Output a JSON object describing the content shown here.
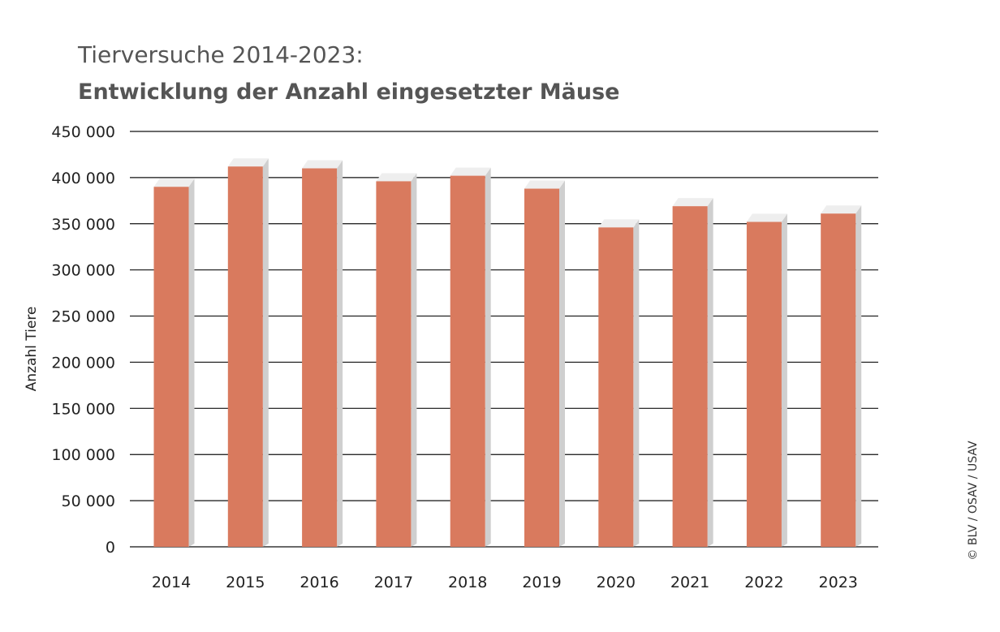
{
  "chart_data": {
    "type": "bar",
    "title": "Tierversuche 2014-2023:",
    "subtitle": "Entwicklung der Anzahl eingesetzter Mäuse",
    "ylabel": "Anzahl Tiere",
    "xlabel": "",
    "ylim": [
      0,
      450000
    ],
    "yticks": [
      0,
      50000,
      100000,
      150000,
      200000,
      250000,
      300000,
      350000,
      400000,
      450000
    ],
    "ytick_labels": [
      "0",
      "50 000",
      "100 000",
      "150 000",
      "200 000",
      "250 000",
      "300 000",
      "350 000",
      "400 000",
      "450 000"
    ],
    "categories": [
      "2014",
      "2015",
      "2016",
      "2017",
      "2018",
      "2019",
      "2020",
      "2021",
      "2022",
      "2023"
    ],
    "values": [
      390000,
      412000,
      410000,
      396000,
      402000,
      388000,
      346000,
      369000,
      352000,
      361000
    ],
    "grid": true,
    "bar_color": "#d97a5e"
  },
  "credit": "© BLV / OSAV / USAV"
}
